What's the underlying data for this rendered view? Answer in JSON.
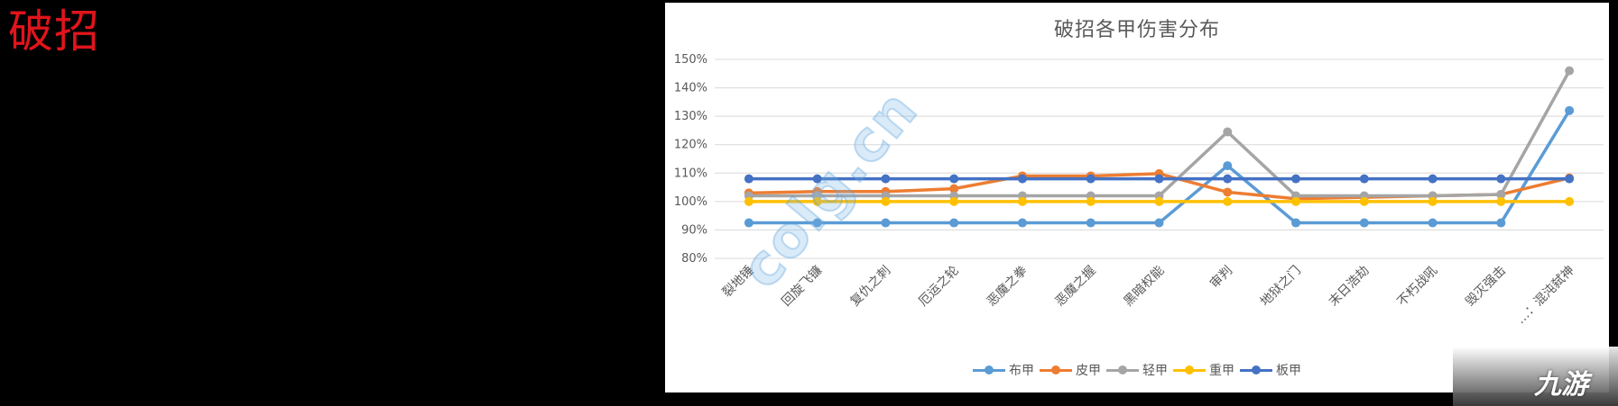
{
  "page": {
    "side_title": "破招",
    "watermark": "colg.cn",
    "logo_text": "九游"
  },
  "chart_data": {
    "type": "line",
    "title": "破招各甲伤害分布",
    "xlabel": "",
    "ylabel": "",
    "ylim": [
      0.8,
      1.5
    ],
    "yticks": [
      "80%",
      "90%",
      "100%",
      "110%",
      "120%",
      "130%",
      "140%",
      "150%"
    ],
    "grid": true,
    "legend_position": "bottom",
    "categories": [
      "裂地锤",
      "回旋飞镰",
      "复仇之刺",
      "厄运之轮",
      "恶魔之拳",
      "恶魔之握",
      "黑暗权能",
      "审判",
      "地狱之门",
      "末日浩劫",
      "不朽战吼",
      "毁灭强击",
      "…：混沌弑神"
    ],
    "series": [
      {
        "name": "布甲",
        "color": "#5b9bd5",
        "values": [
          0.925,
          0.925,
          0.925,
          0.925,
          0.925,
          0.925,
          0.925,
          1.126,
          0.925,
          0.925,
          0.925,
          0.925,
          1.32
        ]
      },
      {
        "name": "皮甲",
        "color": "#ed7d31",
        "values": [
          1.03,
          1.035,
          1.035,
          1.045,
          1.09,
          1.09,
          1.098,
          1.033,
          1.01,
          1.015,
          1.02,
          1.025,
          1.083
        ]
      },
      {
        "name": "轻甲",
        "color": "#a5a5a5",
        "values": [
          1.02,
          1.02,
          1.02,
          1.02,
          1.02,
          1.02,
          1.02,
          1.245,
          1.02,
          1.02,
          1.02,
          1.025,
          1.46
        ]
      },
      {
        "name": "重甲",
        "color": "#ffc000",
        "values": [
          1.0,
          1.0,
          1.0,
          1.0,
          1.0,
          1.0,
          1.0,
          1.0,
          1.0,
          1.0,
          1.0,
          1.0,
          1.0
        ]
      },
      {
        "name": "板甲",
        "color": "#4472c4",
        "values": [
          1.08,
          1.08,
          1.08,
          1.08,
          1.08,
          1.08,
          1.08,
          1.08,
          1.08,
          1.08,
          1.08,
          1.08,
          1.08
        ]
      }
    ]
  }
}
